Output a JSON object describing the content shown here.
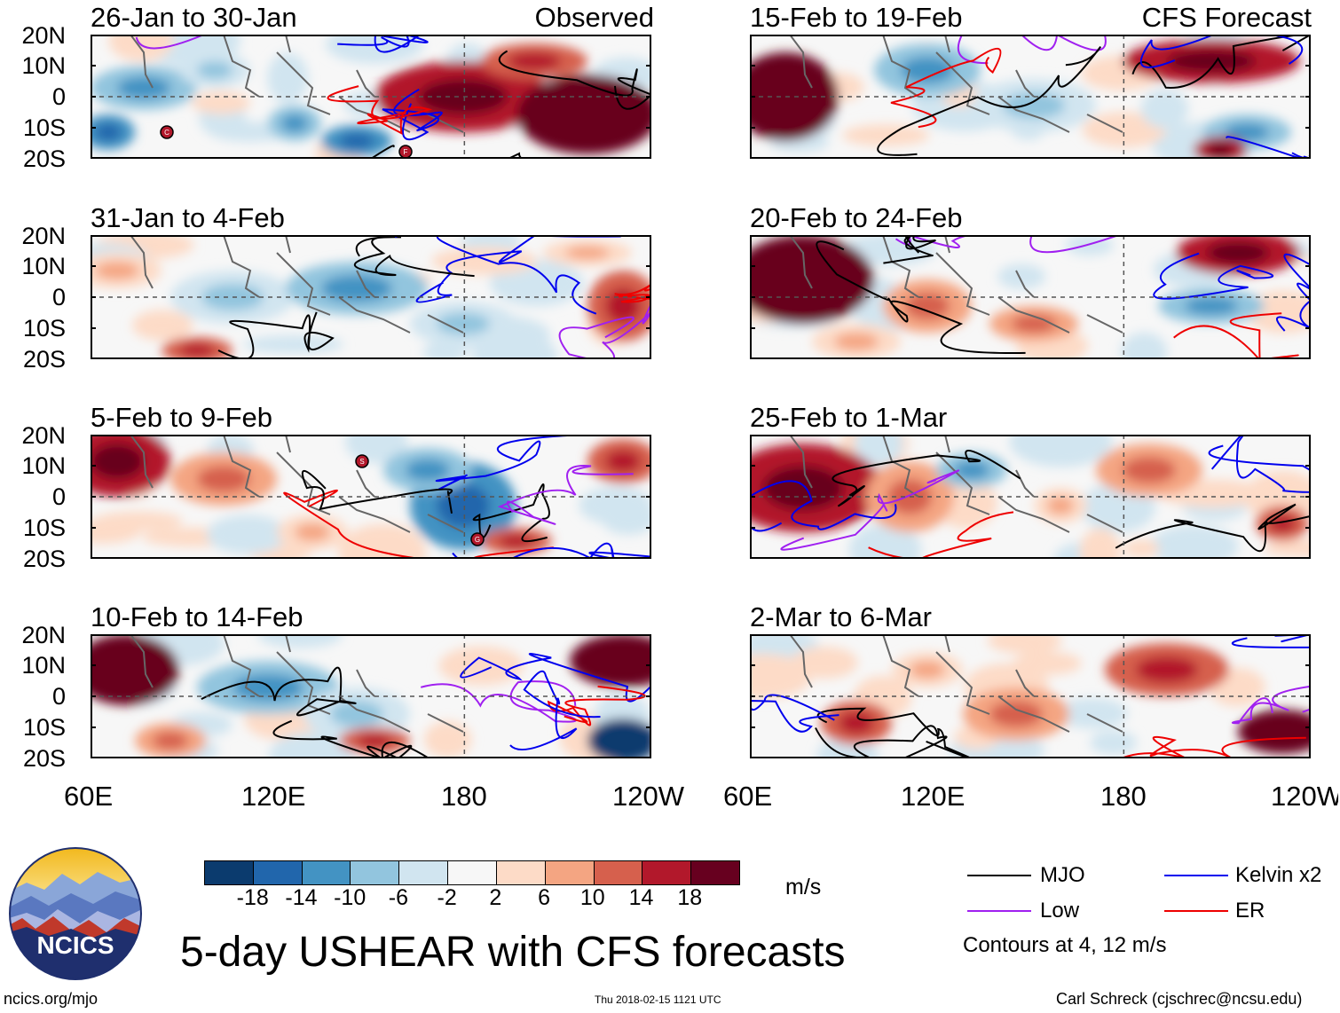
{
  "panels": [
    {
      "title": "26-Jan to 30-Jan",
      "tag": "Observed",
      "storms": [
        "C",
        "F"
      ]
    },
    {
      "title": "31-Jan to 4-Feb",
      "tag": "",
      "storms": []
    },
    {
      "title": "5-Feb to 9-Feb",
      "tag": "",
      "storms": [
        "S",
        "G"
      ]
    },
    {
      "title": "10-Feb to 14-Feb",
      "tag": "",
      "storms": []
    },
    {
      "title": "15-Feb to 19-Feb",
      "tag": "CFS Forecast",
      "storms": []
    },
    {
      "title": "20-Feb to 24-Feb",
      "tag": "",
      "storms": []
    },
    {
      "title": "25-Feb to 1-Mar",
      "tag": "",
      "storms": []
    },
    {
      "title": "2-Mar to 6-Mar",
      "tag": "",
      "storms": []
    }
  ],
  "lat_labels": [
    "20N",
    "10N",
    "0",
    "10S",
    "20S"
  ],
  "lon_labels": [
    "60E",
    "120E",
    "180",
    "120W"
  ],
  "colorbar": {
    "units": "m/s",
    "labels": [
      "-18",
      "-14",
      "-10",
      "-6",
      "-2",
      "2",
      "6",
      "10",
      "14",
      "18"
    ],
    "colors": [
      "#0b3b6e",
      "#2166ac",
      "#4393c3",
      "#92c5de",
      "#d1e5f0",
      "#f7f7f7",
      "#fddbc7",
      "#f4a582",
      "#d6604d",
      "#b2182b",
      "#67001f"
    ]
  },
  "legend": {
    "items": [
      {
        "label": "MJO",
        "color": "#000000"
      },
      {
        "label": "Kelvin x2",
        "color": "#0000ee"
      },
      {
        "label": "Low",
        "color": "#a020f0"
      },
      {
        "label": "ER",
        "color": "#ee0000"
      }
    ],
    "note": "Contours at 4, 12 m/s"
  },
  "logo_text": "NCICS",
  "main_title": "5-day USHEAR with CFS forecasts",
  "footer": {
    "left": "ncics.org/mjo",
    "center": "Thu 2018-02-15 1121 UTC",
    "right": "Carl Schreck (cjschrec@ncsu.edu)"
  }
}
